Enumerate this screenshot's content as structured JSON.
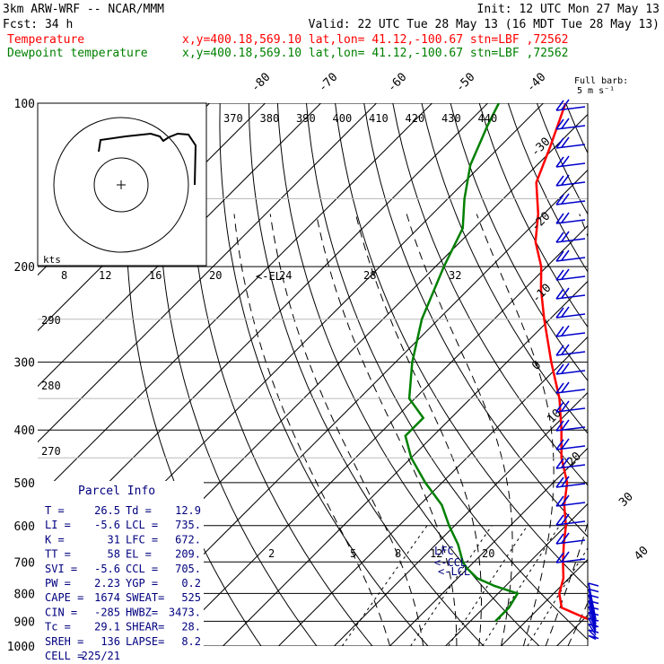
{
  "header": {
    "line1_left": "3km ARW-WRF -- NCAR/MMM",
    "line1_right": "Init: 12 UTC Mon 27 May 13",
    "line2_left": "Fcst:    34 h",
    "line2_right": "Valid: 22 UTC Tue 28 May 13 (16 MDT Tue 28 May 13)",
    "temp_label": "Temperature",
    "temp_info": "x,y=400.18,569.10   lat,lon= 41.12,-100.67   stn=LBF ,72562",
    "dew_label": "Dewpoint temperature",
    "dew_info": "x,y=400.18,569.10   lat,lon= 41.12,-100.67   stn=LBF ,72562",
    "barb_note1": "Full barb:",
    "barb_note2": "5 m s⁻¹"
  },
  "colors": {
    "temperature": "#ff0000",
    "dewpoint": "#008000",
    "header_black": "#000000",
    "parcel_info": "#00007f",
    "wind": "#0000cc"
  },
  "chart_data": {
    "type": "line",
    "y_axis": "Pressure (hPa), log scale",
    "pressure_ticks": [
      100,
      200,
      300,
      400,
      500,
      600,
      700,
      800,
      900,
      1000
    ],
    "isotherm_labels": [
      "-80",
      "-70",
      "-60",
      "-50",
      "-40",
      "-30",
      "-20",
      "-10",
      "0",
      "10",
      "20",
      "30",
      "40"
    ],
    "theta_labels": [
      "370",
      "380",
      "390",
      "400",
      "410",
      "420",
      "430",
      "440"
    ],
    "mixing_ratio_labels": [
      "2",
      "5",
      "8",
      "12",
      "20"
    ],
    "series": [
      {
        "name": "Temperature",
        "color": "#ff0000",
        "points": [
          [
            900,
            32.0
          ],
          [
            850,
            24.0
          ],
          [
            800,
            21.0
          ],
          [
            750,
            19.0
          ],
          [
            700,
            16.0
          ],
          [
            650,
            13.0
          ],
          [
            600,
            10.0
          ],
          [
            550,
            6.0
          ],
          [
            500,
            2.5
          ],
          [
            450,
            -3.0
          ],
          [
            400,
            -8.0
          ],
          [
            350,
            -14.0
          ],
          [
            300,
            -22.0
          ],
          [
            250,
            -31.0
          ],
          [
            220,
            -37.0
          ],
          [
            200,
            -41.0
          ],
          [
            180,
            -46.5
          ],
          [
            160,
            -51.0
          ],
          [
            140,
            -57.0
          ],
          [
            120,
            -61.0
          ],
          [
            100,
            -66.0
          ]
        ]
      },
      {
        "name": "Dewpoint temperature",
        "color": "#008000",
        "points": [
          [
            900,
            14.5
          ],
          [
            850,
            14.5
          ],
          [
            800,
            13.5
          ],
          [
            775,
            8.0
          ],
          [
            750,
            3.5
          ],
          [
            720,
            0.0
          ],
          [
            700,
            -2.0
          ],
          [
            650,
            -6.0
          ],
          [
            600,
            -11.0
          ],
          [
            550,
            -16.0
          ],
          [
            500,
            -23.0
          ],
          [
            450,
            -30.0
          ],
          [
            410,
            -35.0
          ],
          [
            380,
            -35.0
          ],
          [
            350,
            -41.0
          ],
          [
            300,
            -47.0
          ],
          [
            250,
            -53.0
          ],
          [
            200,
            -58.5
          ],
          [
            170,
            -62.0
          ],
          [
            150,
            -67.0
          ],
          [
            130,
            -72.0
          ],
          [
            110,
            -76.0
          ],
          [
            100,
            -78.0
          ]
        ]
      }
    ],
    "annotations": [
      "<-EL",
      "LFC",
      "<-CCL",
      "<-LCL"
    ],
    "hodograph": {
      "ring_labels_kts": [
        "8",
        "12",
        "16",
        "20",
        "24",
        "28",
        "32"
      ],
      "speed_label": "kts"
    },
    "parcel_info": {
      "title": "Parcel Info",
      "rows": [
        [
          "T  =",
          "26.5",
          "Td =",
          "12.9"
        ],
        [
          "LI =",
          "-5.6",
          "LCL =",
          "735."
        ],
        [
          "K  =",
          "31",
          "LFC =",
          "672."
        ],
        [
          "TT =",
          "58",
          "EL =",
          "209."
        ],
        [
          "SVI =",
          "-5.6",
          "CCL =",
          "705."
        ],
        [
          "PW =",
          "2.23",
          "YGP =",
          "0.2"
        ],
        [
          "CAPE =",
          "1674",
          "SWEAT=",
          "525"
        ],
        [
          "CIN =",
          "-285",
          "HWBZ=",
          "3473."
        ],
        [
          "Tc =",
          "29.1",
          "SHEAR=",
          "28."
        ],
        [
          "SREH =",
          "136",
          "LAPSE=",
          "8.2"
        ],
        [
          "CELL =",
          "225/21",
          "",
          ""
        ]
      ]
    }
  }
}
